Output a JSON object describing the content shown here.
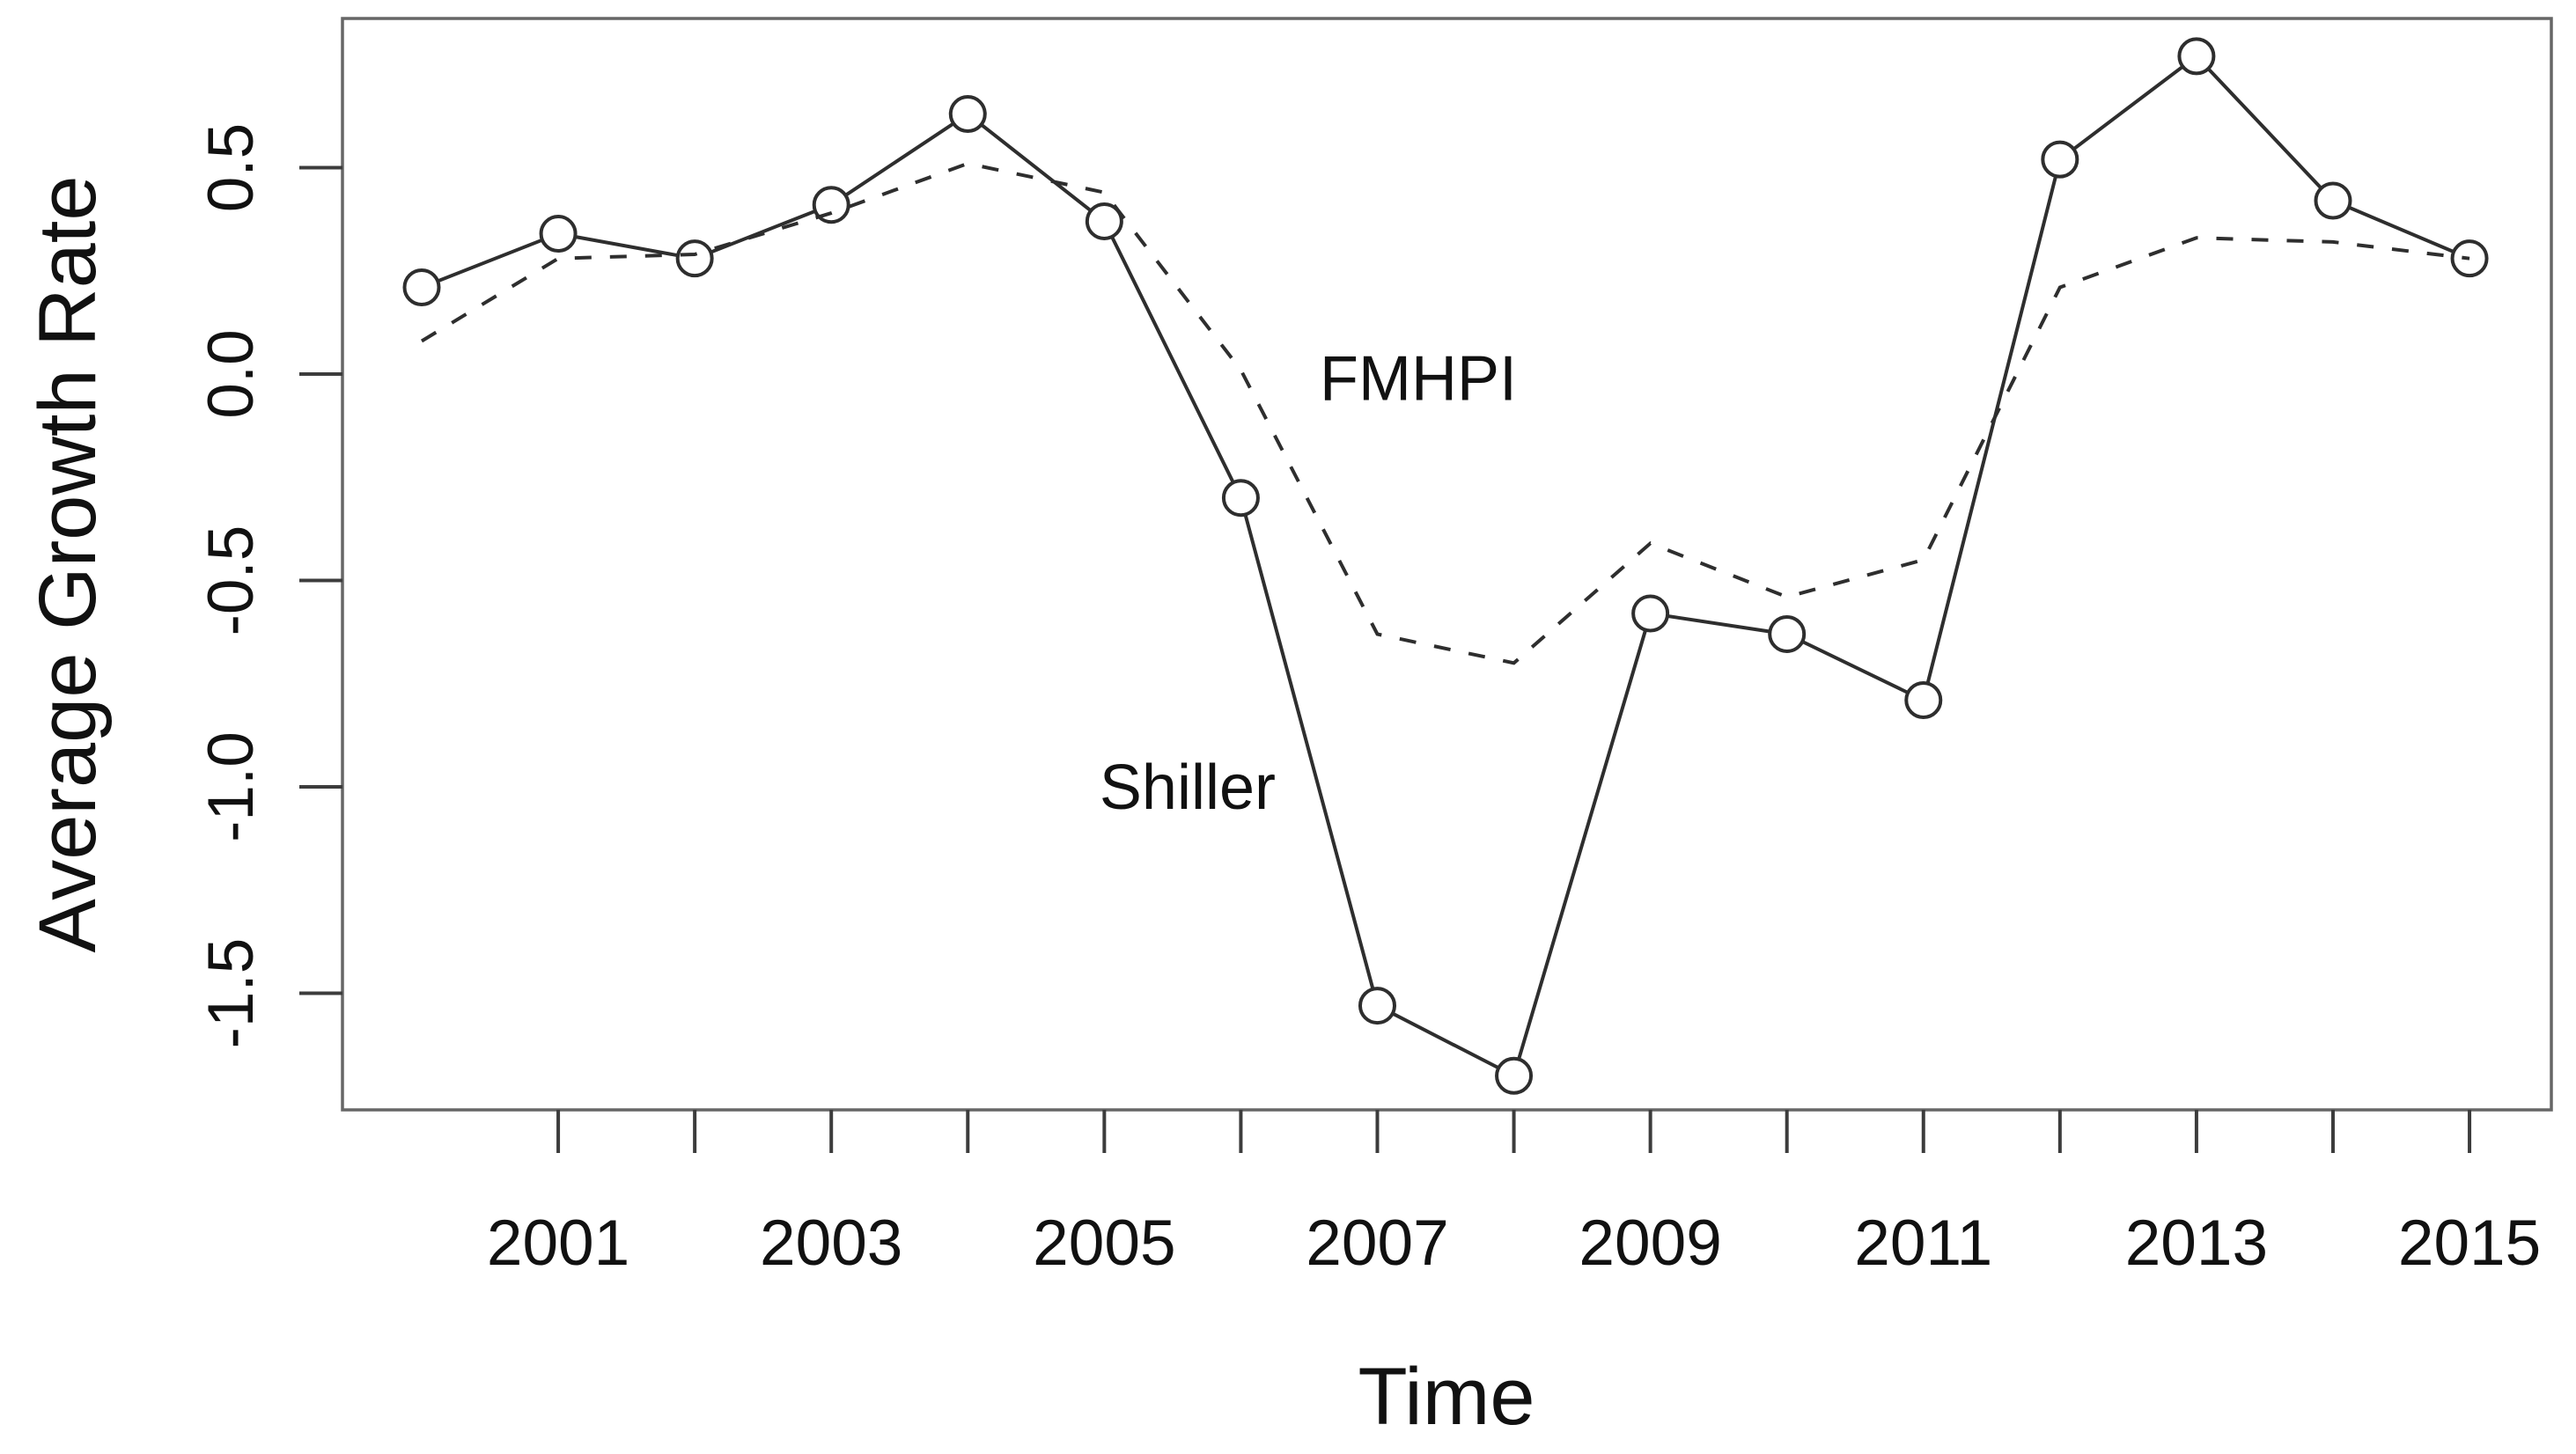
{
  "chart_data": {
    "type": "line",
    "title": "",
    "xlabel": "Time",
    "ylabel": "Average Growth Rate",
    "x": [
      2000,
      2001,
      2002,
      2003,
      2004,
      2005,
      2006,
      2007,
      2008,
      2009,
      2010,
      2011,
      2012,
      2013,
      2014,
      2015
    ],
    "series": [
      {
        "name": "Shiller",
        "style": "solid",
        "marker": "circle",
        "values": [
          0.21,
          0.34,
          0.28,
          0.41,
          0.63,
          0.37,
          -0.3,
          -1.53,
          -1.7,
          -0.58,
          -0.63,
          -0.79,
          0.52,
          0.77,
          0.42,
          0.28
        ]
      },
      {
        "name": "FMHPI",
        "style": "dashed",
        "marker": "none",
        "values": [
          0.08,
          0.28,
          0.29,
          0.39,
          0.51,
          0.44,
          0.01,
          -0.63,
          -0.7,
          -0.41,
          -0.54,
          -0.45,
          0.21,
          0.33,
          0.32,
          0.28
        ]
      }
    ],
    "annotations": [
      {
        "text": "FMHPI",
        "x": 2007.3,
        "y": -0.01
      },
      {
        "text": "Shiller",
        "x": 2005.61,
        "y": -1.0
      }
    ],
    "x_axis": {
      "ticks": [
        2001,
        2002,
        2003,
        2004,
        2005,
        2006,
        2007,
        2008,
        2009,
        2010,
        2011,
        2012,
        2013,
        2014,
        2015
      ],
      "labels": [
        {
          "pos": 2001,
          "text": "2001"
        },
        {
          "pos": 2003,
          "text": "2003"
        },
        {
          "pos": 2005,
          "text": "2005"
        },
        {
          "pos": 2007,
          "text": "2007"
        },
        {
          "pos": 2009,
          "text": "2009"
        },
        {
          "pos": 2011,
          "text": "2011"
        },
        {
          "pos": 2013,
          "text": "2013"
        },
        {
          "pos": 2015,
          "text": "2015"
        }
      ]
    },
    "y_axis": {
      "ticks": [
        0.5,
        0.0,
        -0.5,
        -1.0,
        -1.5
      ],
      "labels": [
        {
          "pos": 0.5,
          "text": "0.5"
        },
        {
          "pos": 0.0,
          "text": "0.0"
        },
        {
          "pos": -0.5,
          "text": "-0.5"
        },
        {
          "pos": -1.0,
          "text": "-1.0"
        },
        {
          "pos": -1.5,
          "text": "-1.5"
        }
      ]
    },
    "xlim": [
      1999.42,
      2015.6
    ],
    "ylim": [
      -1.78,
      0.86
    ],
    "grid": false,
    "legend_position": "inline-annotations",
    "line_color": "#2e2e2e",
    "box_color": "#666666",
    "tick_color": "#3c3c3c",
    "background_color": "#ffffff"
  }
}
